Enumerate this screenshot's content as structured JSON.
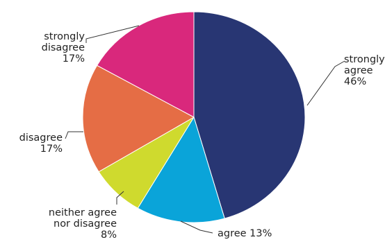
{
  "chart_data": {
    "type": "pie",
    "title": "",
    "unit": "%",
    "slices": [
      {
        "label_lines": [
          "strongly",
          "agree"
        ],
        "value": 46,
        "value_text": "46%",
        "color": "#283673"
      },
      {
        "label_lines": [
          "agree 13%"
        ],
        "value": 13,
        "value_text": "",
        "color": "#0aa4d9"
      },
      {
        "label_lines": [
          "neither agree",
          "nor disagree"
        ],
        "value": 8,
        "value_text": "8%",
        "color": "#cfda2e"
      },
      {
        "label_lines": [
          "disagree"
        ],
        "value": 17,
        "value_text": "17%",
        "color": "#e56d45"
      },
      {
        "label_lines": [
          "strongly",
          "disagree"
        ],
        "value": 17,
        "value_text": "17%",
        "color": "#d9287c"
      }
    ],
    "start_direction": "top (12 o'clock)",
    "order": "clockwise",
    "legend": "none (labels beside slices)"
  }
}
